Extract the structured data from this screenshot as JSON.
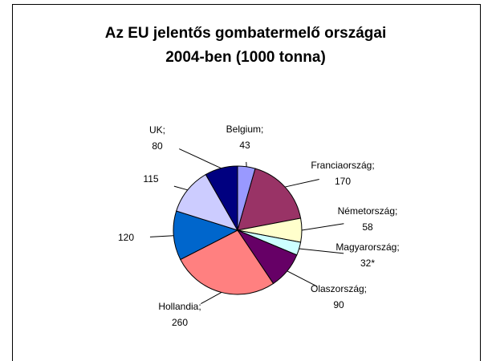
{
  "chart_data": {
    "type": "pie",
    "title": [
      "Az EU jelentős  gombatermelő országai",
      "2004-ben (1000 tonna)"
    ],
    "categories": [
      "Belgium;",
      "Franciaország;",
      "Németország;",
      "Magyarország;",
      "Olaszország;",
      "Hollandia;",
      null,
      null,
      "UK;"
    ],
    "values": [
      43,
      170,
      58,
      32,
      90,
      260,
      120,
      115,
      80
    ],
    "value_labels": [
      "43",
      "170",
      "58",
      "32*",
      "90",
      "260",
      "120",
      "115",
      "80"
    ],
    "colors": [
      "#9999ff",
      "#993366",
      "#ffffcc",
      "#ccffff",
      "#660066",
      "#ff8080",
      "#0066cc",
      "#ccccff",
      "#000080"
    ]
  }
}
